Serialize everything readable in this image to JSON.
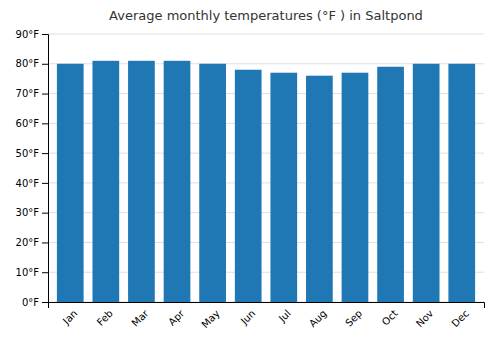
{
  "chart_data": {
    "type": "bar",
    "title": "Average monthly temperatures (°F ) in Saltpond",
    "categories": [
      "Jan",
      "Feb",
      "Mar",
      "Apr",
      "May",
      "Jun",
      "Jul",
      "Aug",
      "Sep",
      "Oct",
      "Nov",
      "Dec"
    ],
    "values": [
      80,
      81,
      81,
      81,
      80,
      78,
      77,
      76,
      77,
      79,
      80,
      80
    ],
    "ylim": [
      0,
      90
    ],
    "yticks": [
      {
        "value": 0,
        "label": "0°F"
      },
      {
        "value": 10,
        "label": "10°F"
      },
      {
        "value": 20,
        "label": "20°F"
      },
      {
        "value": 30,
        "label": "30°F"
      },
      {
        "value": 40,
        "label": "40°F"
      },
      {
        "value": 50,
        "label": "50°F"
      },
      {
        "value": 60,
        "label": "60°F"
      },
      {
        "value": 70,
        "label": "70°F"
      },
      {
        "value": 80,
        "label": "80°F"
      },
      {
        "value": 90,
        "label": "90°F"
      }
    ],
    "grid": true
  }
}
